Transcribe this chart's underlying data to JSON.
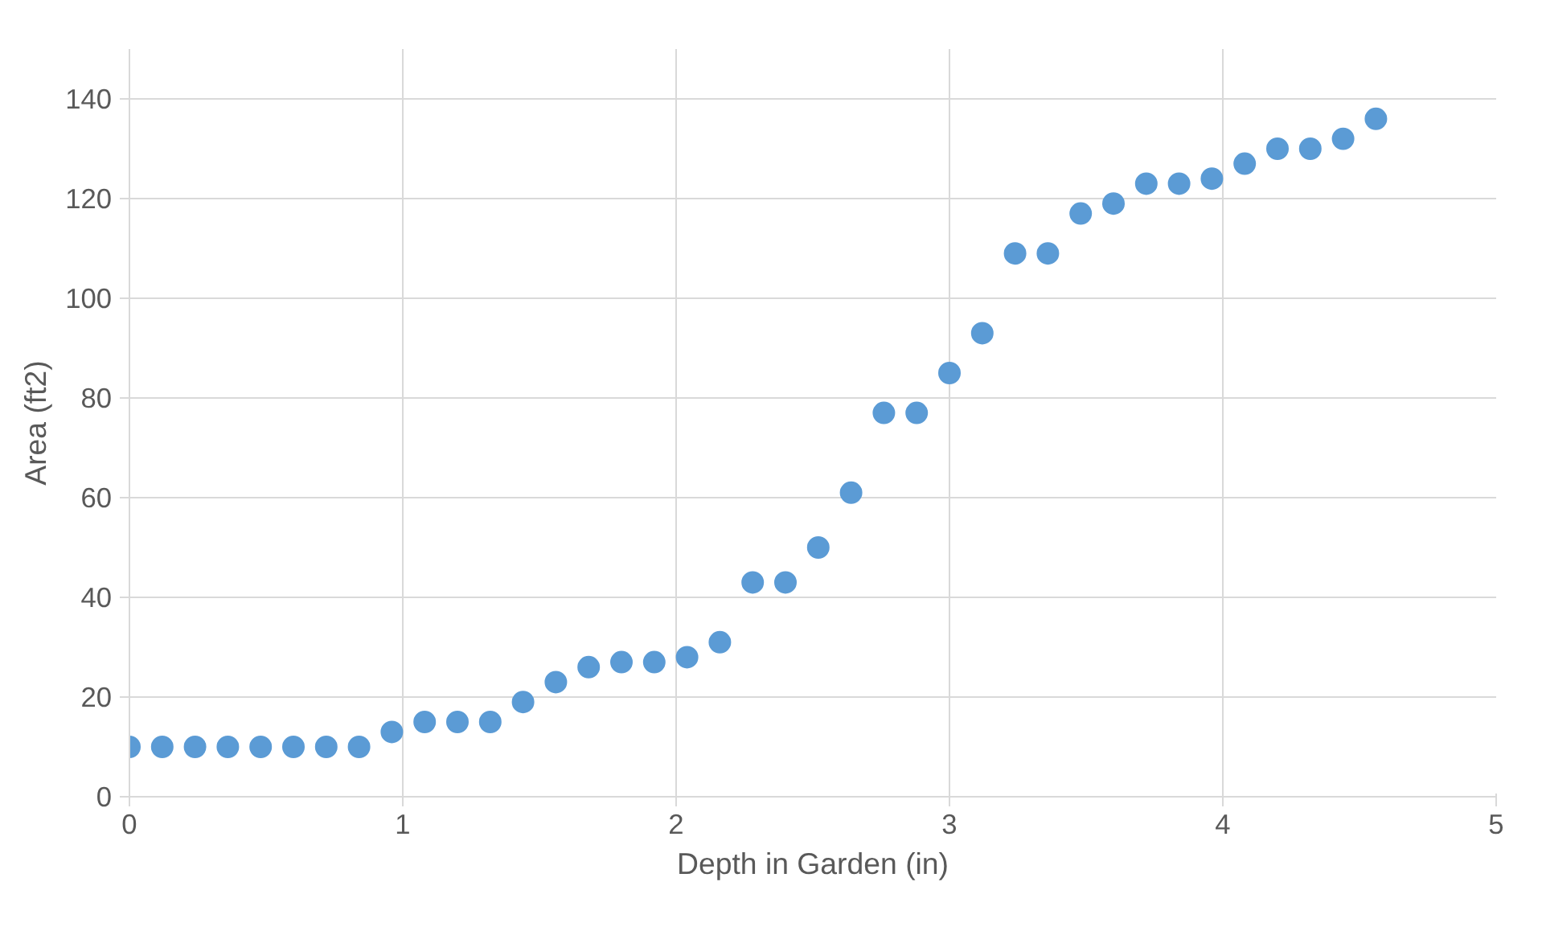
{
  "chart_data": {
    "type": "scatter",
    "xlabel": "Depth in Garden (in)",
    "ylabel": "Area (ft2)",
    "x": [
      0,
      0.12,
      0.24,
      0.36,
      0.48,
      0.6,
      0.72,
      0.84,
      0.96,
      1.08,
      1.2,
      1.32,
      1.44,
      1.56,
      1.68,
      1.8,
      1.92,
      2.04,
      2.16,
      2.28,
      2.4,
      2.52,
      2.64,
      2.76,
      2.88,
      3.0,
      3.12,
      3.24,
      3.36,
      3.48,
      3.6,
      3.72,
      3.84,
      3.96,
      4.08,
      4.2,
      4.32,
      4.44,
      4.56
    ],
    "series": [
      {
        "color": "#5b9bd5",
        "values": [
          10,
          10,
          10,
          10,
          10,
          10,
          10,
          10,
          13,
          15,
          15,
          15,
          19,
          23,
          26,
          27,
          27,
          28,
          31,
          43,
          43,
          50,
          61,
          77,
          77,
          85,
          93,
          109,
          109,
          117,
          119,
          123,
          123,
          124,
          127,
          130,
          130,
          132,
          136
        ]
      }
    ],
    "xlim": [
      0,
      5
    ],
    "ylim": [
      0,
      150
    ],
    "xticks": [
      0,
      1,
      2,
      3,
      4,
      5
    ],
    "yticks": [
      0,
      20,
      40,
      60,
      80,
      100,
      120,
      140
    ],
    "grid": true,
    "marker": "circle"
  }
}
